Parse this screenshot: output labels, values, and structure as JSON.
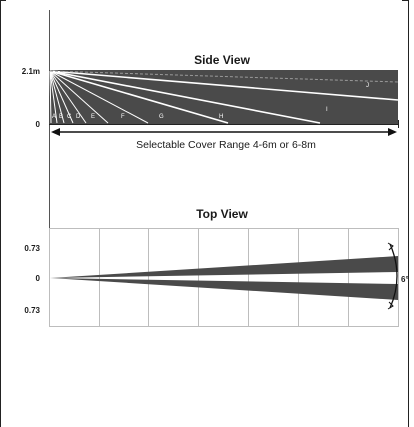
{
  "side_view": {
    "title": "Side View",
    "height_label": "2.1m",
    "ground_label": "0",
    "zone_labels": [
      "A",
      "B",
      "C",
      "D",
      "E",
      "F",
      "G",
      "H",
      "I",
      "J"
    ],
    "range_caption": "Selectable Cover Range 4-6m or 6-8m"
  },
  "top_view": {
    "title": "Top View",
    "y_labels": [
      "0.73",
      "0",
      "0.73"
    ],
    "angle_label": "6°"
  },
  "colors": {
    "beam_fill": "#4a4a4a",
    "beam_lines": "#ffffff",
    "grid": "#bdbdbd",
    "frame": "#222222"
  }
}
